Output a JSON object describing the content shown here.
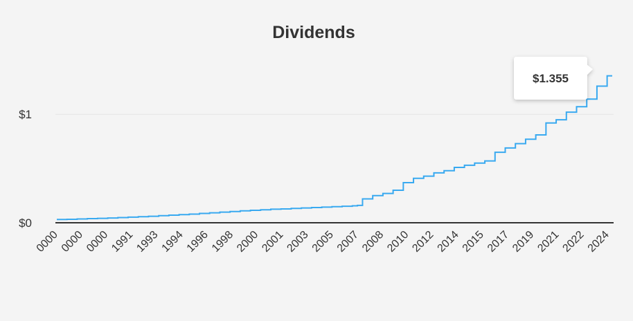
{
  "chart_data": {
    "type": "line",
    "title": "Dividends",
    "xlabel": "",
    "ylabel": "",
    "ylim": [
      0,
      1.48
    ],
    "y_ticks": [
      {
        "value": 0,
        "label": "$0"
      },
      {
        "value": 1,
        "label": "$1"
      }
    ],
    "x_tick_labels": [
      "0000",
      "0000",
      "0000",
      "1991",
      "1993",
      "1994",
      "1996",
      "1998",
      "2000",
      "2001",
      "2003",
      "2005",
      "2007",
      "2008",
      "2010",
      "2012",
      "2014",
      "2015",
      "2017",
      "2019",
      "2021",
      "2022",
      "2024"
    ],
    "series": [
      {
        "name": "Dividends",
        "color": "#38a9f0",
        "step": true,
        "values": [
          0.03,
          0.03,
          0.032,
          0.032,
          0.035,
          0.035,
          0.038,
          0.038,
          0.041,
          0.041,
          0.044,
          0.044,
          0.048,
          0.048,
          0.052,
          0.052,
          0.056,
          0.056,
          0.06,
          0.06,
          0.065,
          0.065,
          0.07,
          0.07,
          0.075,
          0.075,
          0.08,
          0.08,
          0.086,
          0.086,
          0.092,
          0.092,
          0.098,
          0.098,
          0.104,
          0.104,
          0.11,
          0.11,
          0.115,
          0.115,
          0.12,
          0.12,
          0.125,
          0.125,
          0.128,
          0.128,
          0.132,
          0.132,
          0.136,
          0.136,
          0.14,
          0.14,
          0.144,
          0.144,
          0.148,
          0.148,
          0.152,
          0.152,
          0.156,
          0.16,
          0.22,
          0.22,
          0.25,
          0.25,
          0.27,
          0.27,
          0.3,
          0.3,
          0.37,
          0.37,
          0.41,
          0.41,
          0.43,
          0.43,
          0.46,
          0.46,
          0.48,
          0.48,
          0.51,
          0.51,
          0.53,
          0.53,
          0.55,
          0.55,
          0.57,
          0.57,
          0.65,
          0.65,
          0.69,
          0.69,
          0.73,
          0.73,
          0.77,
          0.77,
          0.81,
          0.81,
          0.92,
          0.92,
          0.95,
          0.95,
          1.02,
          1.02,
          1.07,
          1.07,
          1.14,
          1.14,
          1.26,
          1.26,
          1.355,
          1.355
        ]
      }
    ],
    "gridlines": true,
    "tooltip": {
      "label": "$1.355"
    },
    "colors": {
      "background": "#f4f4f4",
      "line": "#38a9f0",
      "axis": "#333333",
      "grid": "#e3e3e3",
      "text": "#333333",
      "tooltip_bg": "#ffffff"
    }
  }
}
